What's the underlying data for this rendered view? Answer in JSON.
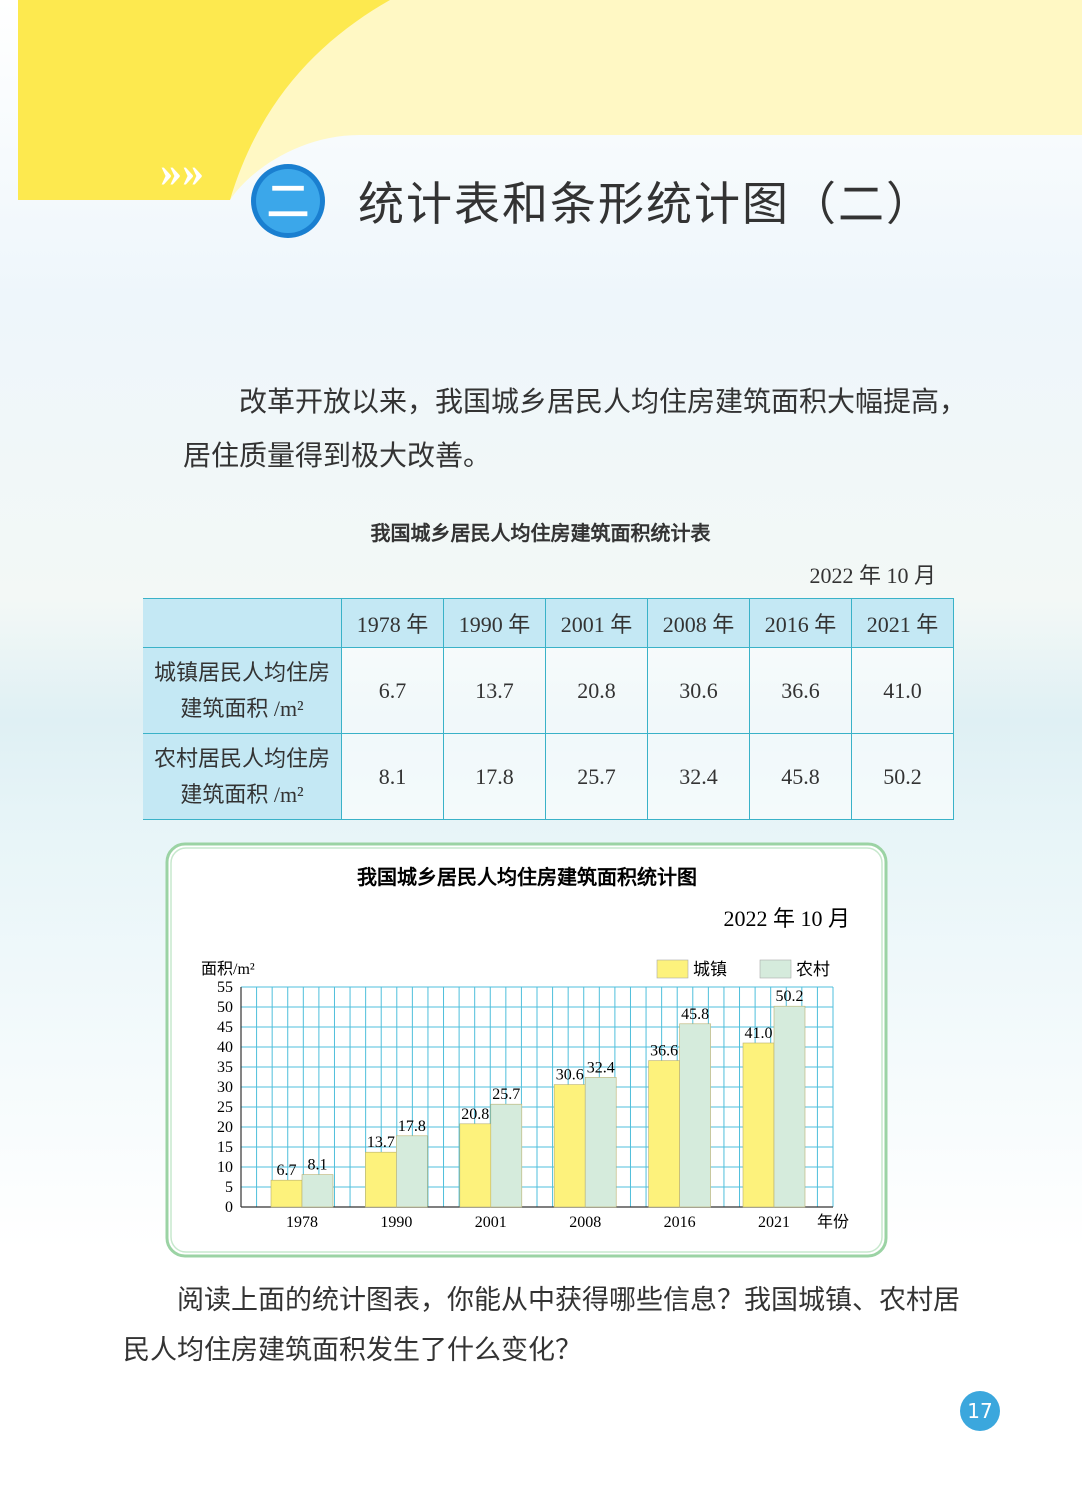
{
  "header": {
    "number": "二",
    "title": "统计表和条形统计图（二）"
  },
  "intro": "改革开放以来，我国城乡居民人均住房建筑面积大幅提高，居住质量得到极大改善。",
  "table": {
    "title": "我国城乡居民人均住房建筑面积统计表",
    "date": "2022 年 10 月",
    "header": [
      "1978 年",
      "1990 年",
      "2001 年",
      "2008 年",
      "2016 年",
      "2021 年"
    ],
    "rows": [
      [
        "城镇居民人均住房建筑面积 /m²",
        "6.7",
        "13.7",
        "20.8",
        "30.6",
        "36.6",
        "41.0"
      ],
      [
        "农村居民人均住房建筑面积 /m²",
        "8.1",
        "17.8",
        "25.7",
        "32.4",
        "45.8",
        "50.2"
      ]
    ]
  },
  "chart_data": {
    "type": "bar",
    "title": "我国城乡居民人均住房建筑面积统计图",
    "subtitle": "2022 年 10 月",
    "y_label": "面积/m²",
    "x_label": "年份",
    "categories": [
      "1978",
      "1990",
      "2001",
      "2008",
      "2016",
      "2021"
    ],
    "series": [
      {
        "name": "城镇",
        "color": "#fdf27c",
        "values": [
          6.7,
          13.7,
          20.8,
          30.6,
          36.6,
          41.0
        ],
        "value_labels": [
          "6.7",
          "13.7",
          "20.8",
          "30.6",
          "36.6",
          "41.0"
        ]
      },
      {
        "name": "农村",
        "color": "#d5ebdc",
        "values": [
          8.1,
          17.8,
          25.7,
          32.4,
          45.8,
          50.2
        ]
      }
    ],
    "ylim": [
      0,
      55
    ],
    "yticks": [
      0,
      5,
      10,
      15,
      20,
      25,
      30,
      35,
      40,
      45,
      50,
      55
    ],
    "grid": true,
    "grid_color": "#4fbfdc"
  },
  "question": "阅读上面的统计图表，你能从中获得哪些信息？我国城镇、农村居民人均住房建筑面积发生了什么变化？",
  "page_number": "17"
}
